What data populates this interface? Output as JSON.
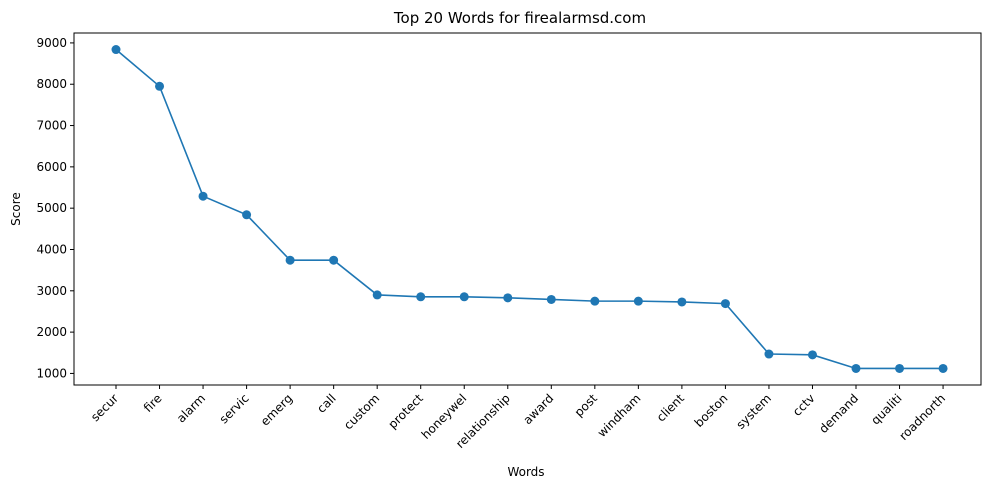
{
  "chart_data": {
    "type": "line",
    "title": "Top 20 Words for firealarmsd.com",
    "xlabel": "Words",
    "ylabel": "Score",
    "categories": [
      "secur",
      "fire",
      "alarm",
      "servic",
      "emerg",
      "call",
      "custom",
      "protect",
      "honeywel",
      "relationship",
      "award",
      "post",
      "windham",
      "client",
      "boston",
      "system",
      "cctv",
      "demand",
      "qualiti",
      "roadnorth"
    ],
    "values": [
      8840,
      7950,
      5290,
      4840,
      3740,
      3740,
      2900,
      2855,
      2855,
      2830,
      2790,
      2750,
      2750,
      2730,
      2690,
      1470,
      1450,
      1120,
      1120,
      1120
    ],
    "yticks": [
      1000,
      2000,
      3000,
      4000,
      5000,
      6000,
      7000,
      8000,
      9000
    ],
    "ylim": [
      720,
      9240
    ],
    "grid": false,
    "legend": "none",
    "marker": "circle",
    "line_color": "#1f77b4"
  }
}
